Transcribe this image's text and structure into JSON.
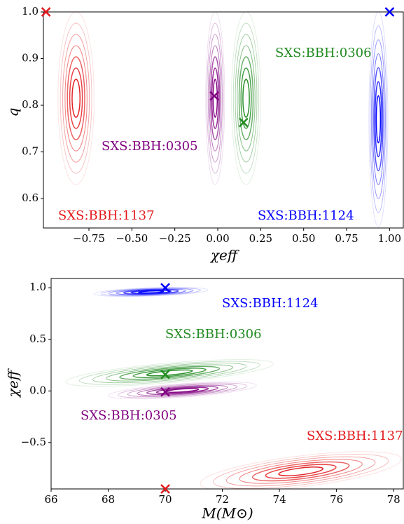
{
  "chart_data": [
    {
      "type": "contour",
      "x_label": "χeff",
      "y_label": "q",
      "xlim": [
        -1.015,
        1.08
      ],
      "ylim": [
        0.537,
        1.0
      ],
      "xticks": [
        {
          "value": -0.75,
          "label": "−0.75"
        },
        {
          "value": -0.5,
          "label": "−0.50"
        },
        {
          "value": -0.25,
          "label": "−0.25"
        },
        {
          "value": 0,
          "label": "0.00"
        },
        {
          "value": 0.25,
          "label": "0.25"
        },
        {
          "value": 0.5,
          "label": "0.50"
        },
        {
          "value": 0.75,
          "label": "0.75"
        },
        {
          "value": 1,
          "label": "1.00"
        }
      ],
      "yticks": [
        {
          "value": 0.6,
          "label": "0.6"
        },
        {
          "value": 0.7,
          "label": "0.7"
        },
        {
          "value": 0.8,
          "label": "0.8"
        },
        {
          "value": 0.9,
          "label": "0.9"
        },
        {
          "value": 1,
          "label": "1.0"
        }
      ],
      "series": [
        {
          "name": "SXS:BBH:1137",
          "color": "#e31a1c",
          "marker": [
            -1.0,
            1.0
          ],
          "contour_x": [
            -0.93,
            -0.72
          ],
          "contour_y": [
            0.63,
            1.0
          ]
        },
        {
          "name": "SXS:BBH:0305",
          "color": "#800080",
          "marker": [
            -0.02,
            0.82
          ],
          "contour_x": [
            -0.07,
            0.04
          ],
          "contour_y": [
            0.63,
            1.0
          ]
        },
        {
          "name": "SXS:BBH:0306",
          "color": "#228b22",
          "marker": [
            0.15,
            0.763
          ],
          "contour_x": [
            0.08,
            0.25
          ],
          "contour_y": [
            0.63,
            1.0
          ]
        },
        {
          "name": "SXS:BBH:1124",
          "color": "#0000ff",
          "marker": [
            1.0,
            1.0
          ],
          "contour_x": [
            0.88,
            0.99
          ],
          "contour_y": [
            0.54,
            1.0
          ]
        }
      ]
    },
    {
      "type": "contour",
      "x_label": "M(M⊙)",
      "y_label": "χeff",
      "xlim": [
        66,
        78.34
      ],
      "ylim": [
        -0.95,
        1.09
      ],
      "xticks": [
        66,
        68,
        70,
        72,
        74,
        76,
        78
      ],
      "yticks": [
        {
          "value": -0.5,
          "label": "−0.5"
        },
        {
          "value": 0,
          "label": "0.0"
        },
        {
          "value": 0.5,
          "label": "0.5"
        },
        {
          "value": 1,
          "label": "1.0"
        }
      ],
      "series": [
        {
          "name": "SXS:BBH:1124",
          "color": "#0000ff",
          "marker": [
            70,
            1.0
          ],
          "contour_x": [
            67.5,
            71.5
          ],
          "contour_y": [
            0.92,
            1.0
          ]
        },
        {
          "name": "SXS:BBH:0306",
          "color": "#228b22",
          "marker": [
            70,
            0.16
          ],
          "contour_x": [
            66.5,
            73.8
          ],
          "contour_y": [
            0.08,
            0.27
          ]
        },
        {
          "name": "SXS:BBH:0305",
          "color": "#800080",
          "marker": [
            70,
            -0.01
          ],
          "contour_x": [
            68,
            73.2
          ],
          "contour_y": [
            -0.06,
            0.07
          ]
        },
        {
          "name": "SXS:BBH:1137",
          "color": "#e31a1c",
          "marker": [
            70,
            -0.95
          ],
          "contour_x": [
            71.2,
            78.3
          ],
          "contour_y": [
            -0.93,
            -0.63
          ]
        }
      ]
    }
  ]
}
